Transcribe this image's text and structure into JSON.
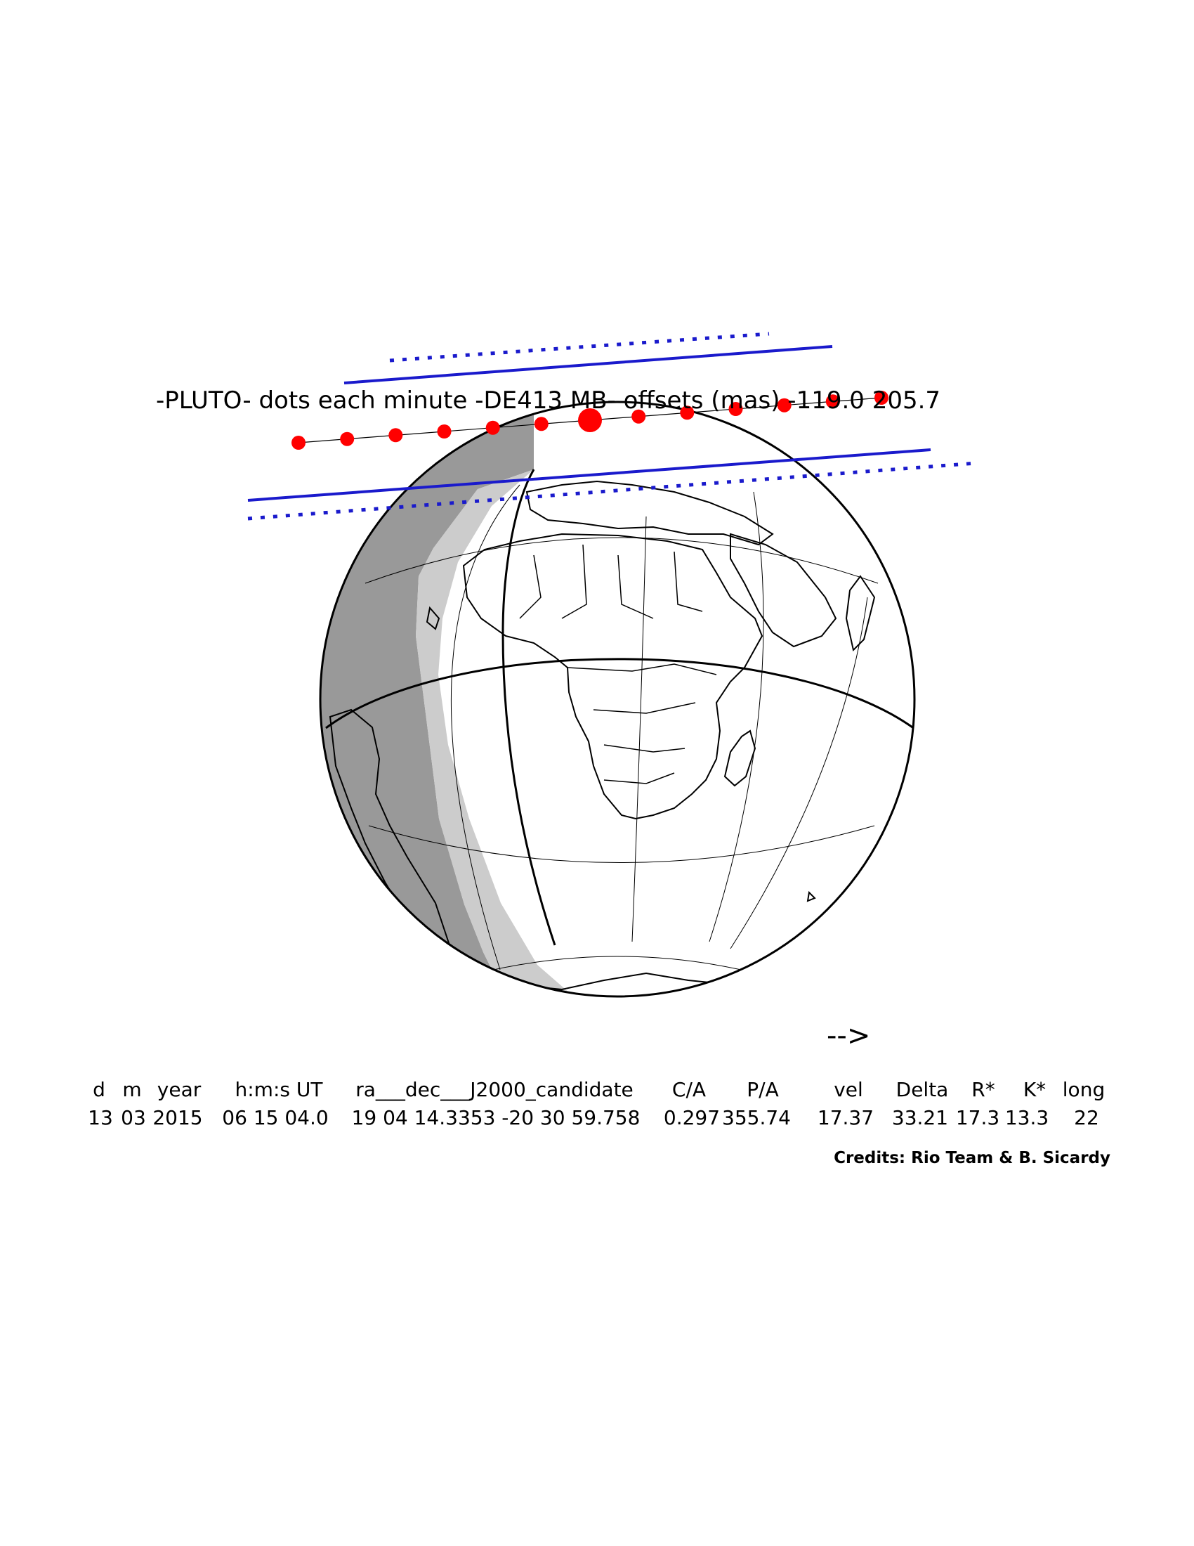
{
  "title": "-PLUTO- dots each minute -DE413 MB- offsets (mas) -119.0 205.7",
  "direction_arrow": "-->",
  "table": {
    "headers": [
      "d",
      "m",
      "year",
      "h:m:s UT",
      "ra___dec___J2000_candidate",
      "C/A",
      "P/A",
      "vel",
      "Delta",
      "R*",
      "K*",
      "long"
    ],
    "values": [
      "13",
      "03",
      "2015",
      "06 15 04.0",
      "19 04 14.3353 -20 30 59.758",
      "0.297",
      "355.74",
      "17.37",
      "33.21",
      "17.3",
      "13.3",
      "22"
    ]
  },
  "credits": "Credits: Rio Team & B. Sicardy",
  "colors": {
    "shadow_path": "#1a1acc",
    "dots": "#ff0000",
    "night": "#999999",
    "twilight": "#cccccc",
    "day": "#ffffff"
  },
  "chart_data": {
    "type": "scatter",
    "object": "PLUTO",
    "ephemeris": "DE413",
    "dot_interval": "each minute",
    "offsets_mas": [
      -119.0,
      205.7
    ],
    "dots_count": 13,
    "closest_approach_dot_index": 6
  }
}
